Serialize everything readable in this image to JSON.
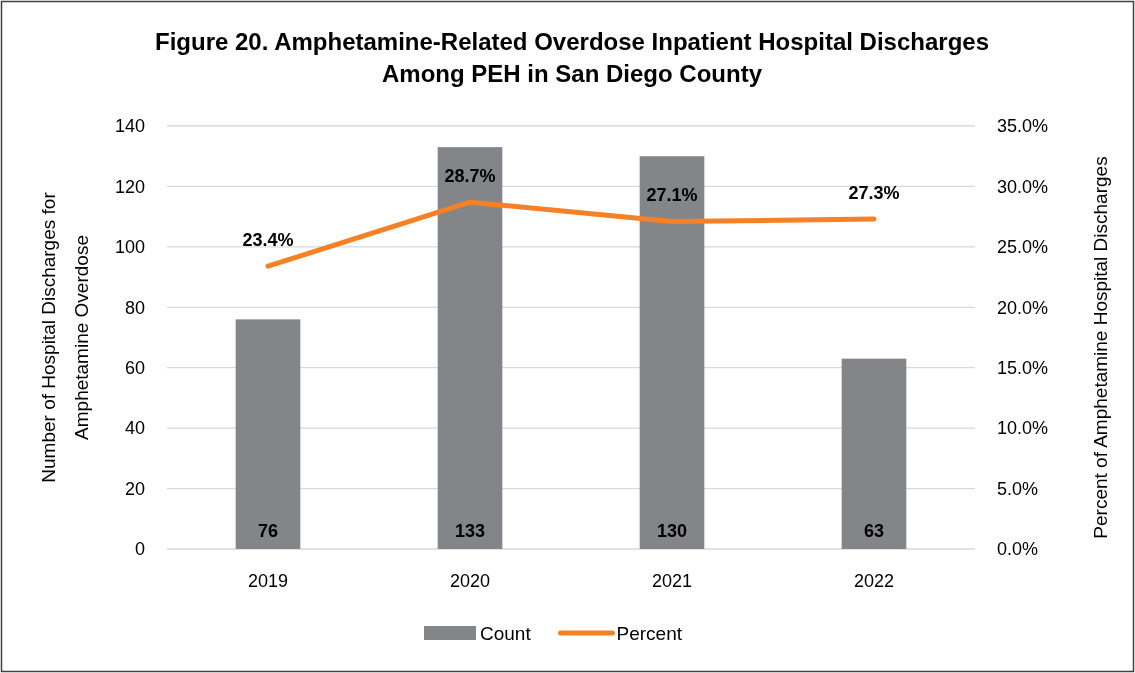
{
  "chart_data": {
    "type": "bar",
    "title": "Figure 20. Amphetamine-Related Overdose Inpatient Hospital Discharges\nAmong PEH in San Diego County",
    "ylabel": "Number of Hospital Discharges for\nAmphetamine  Overdose",
    "y2label": "Percent of Amphetamine Hospital Discharges",
    "categories": [
      "2019",
      "2020",
      "2021",
      "2022"
    ],
    "series": [
      {
        "name": "Count",
        "color": "#848589",
        "values": [
          76,
          133,
          130,
          63
        ],
        "value_labels": [
          "76",
          "133",
          "130",
          "63"
        ]
      },
      {
        "name": "Percent",
        "type": "line",
        "axis": "y2",
        "color": "#f58025",
        "values": [
          23.4,
          28.7,
          27.1,
          27.3
        ],
        "value_labels": [
          "23.4%",
          "28.7%",
          "27.1%",
          "27.3%"
        ]
      }
    ],
    "ylim": [
      0,
      140
    ],
    "yticks": [
      0,
      20,
      40,
      60,
      80,
      100,
      120,
      140
    ],
    "y2lim": [
      0,
      35
    ],
    "y2ticks": [
      {
        "value": 0,
        "label": "0.0%"
      },
      {
        "value": 5,
        "label": "5.0%"
      },
      {
        "value": 10,
        "label": "10.0%"
      },
      {
        "value": 15,
        "label": "15.0%"
      },
      {
        "value": 20,
        "label": "20.0%"
      },
      {
        "value": 25,
        "label": "25.0%"
      },
      {
        "value": 30,
        "label": "30.0%"
      },
      {
        "value": 35,
        "label": "35.0%"
      }
    ],
    "grid": "y",
    "legend": "bottom"
  }
}
